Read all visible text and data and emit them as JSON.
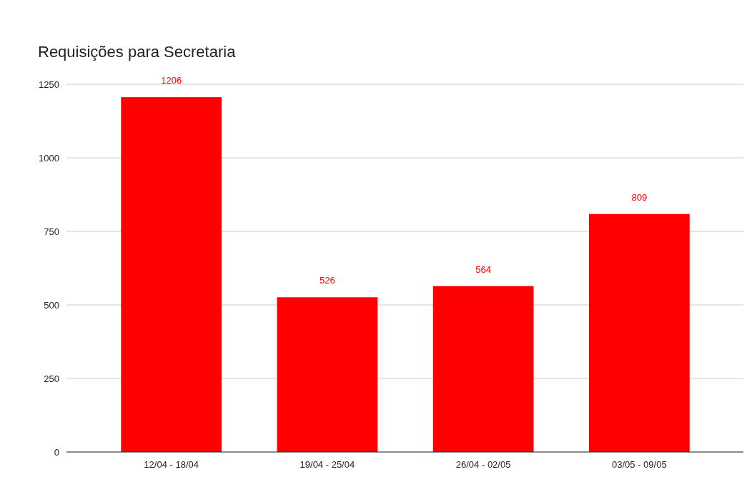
{
  "chart_data": {
    "type": "bar",
    "title": "Requisições para Secretaria",
    "categories": [
      "12/04 - 18/04",
      "19/04 - 25/04",
      "26/04 - 02/05",
      "03/05 - 09/05"
    ],
    "values": [
      1206,
      526,
      564,
      809
    ],
    "color": "#ff0000",
    "ylim": [
      0,
      1250
    ],
    "yticks": [
      0,
      250,
      500,
      750,
      1000,
      1250
    ],
    "grid": "y",
    "data_labels": true
  }
}
